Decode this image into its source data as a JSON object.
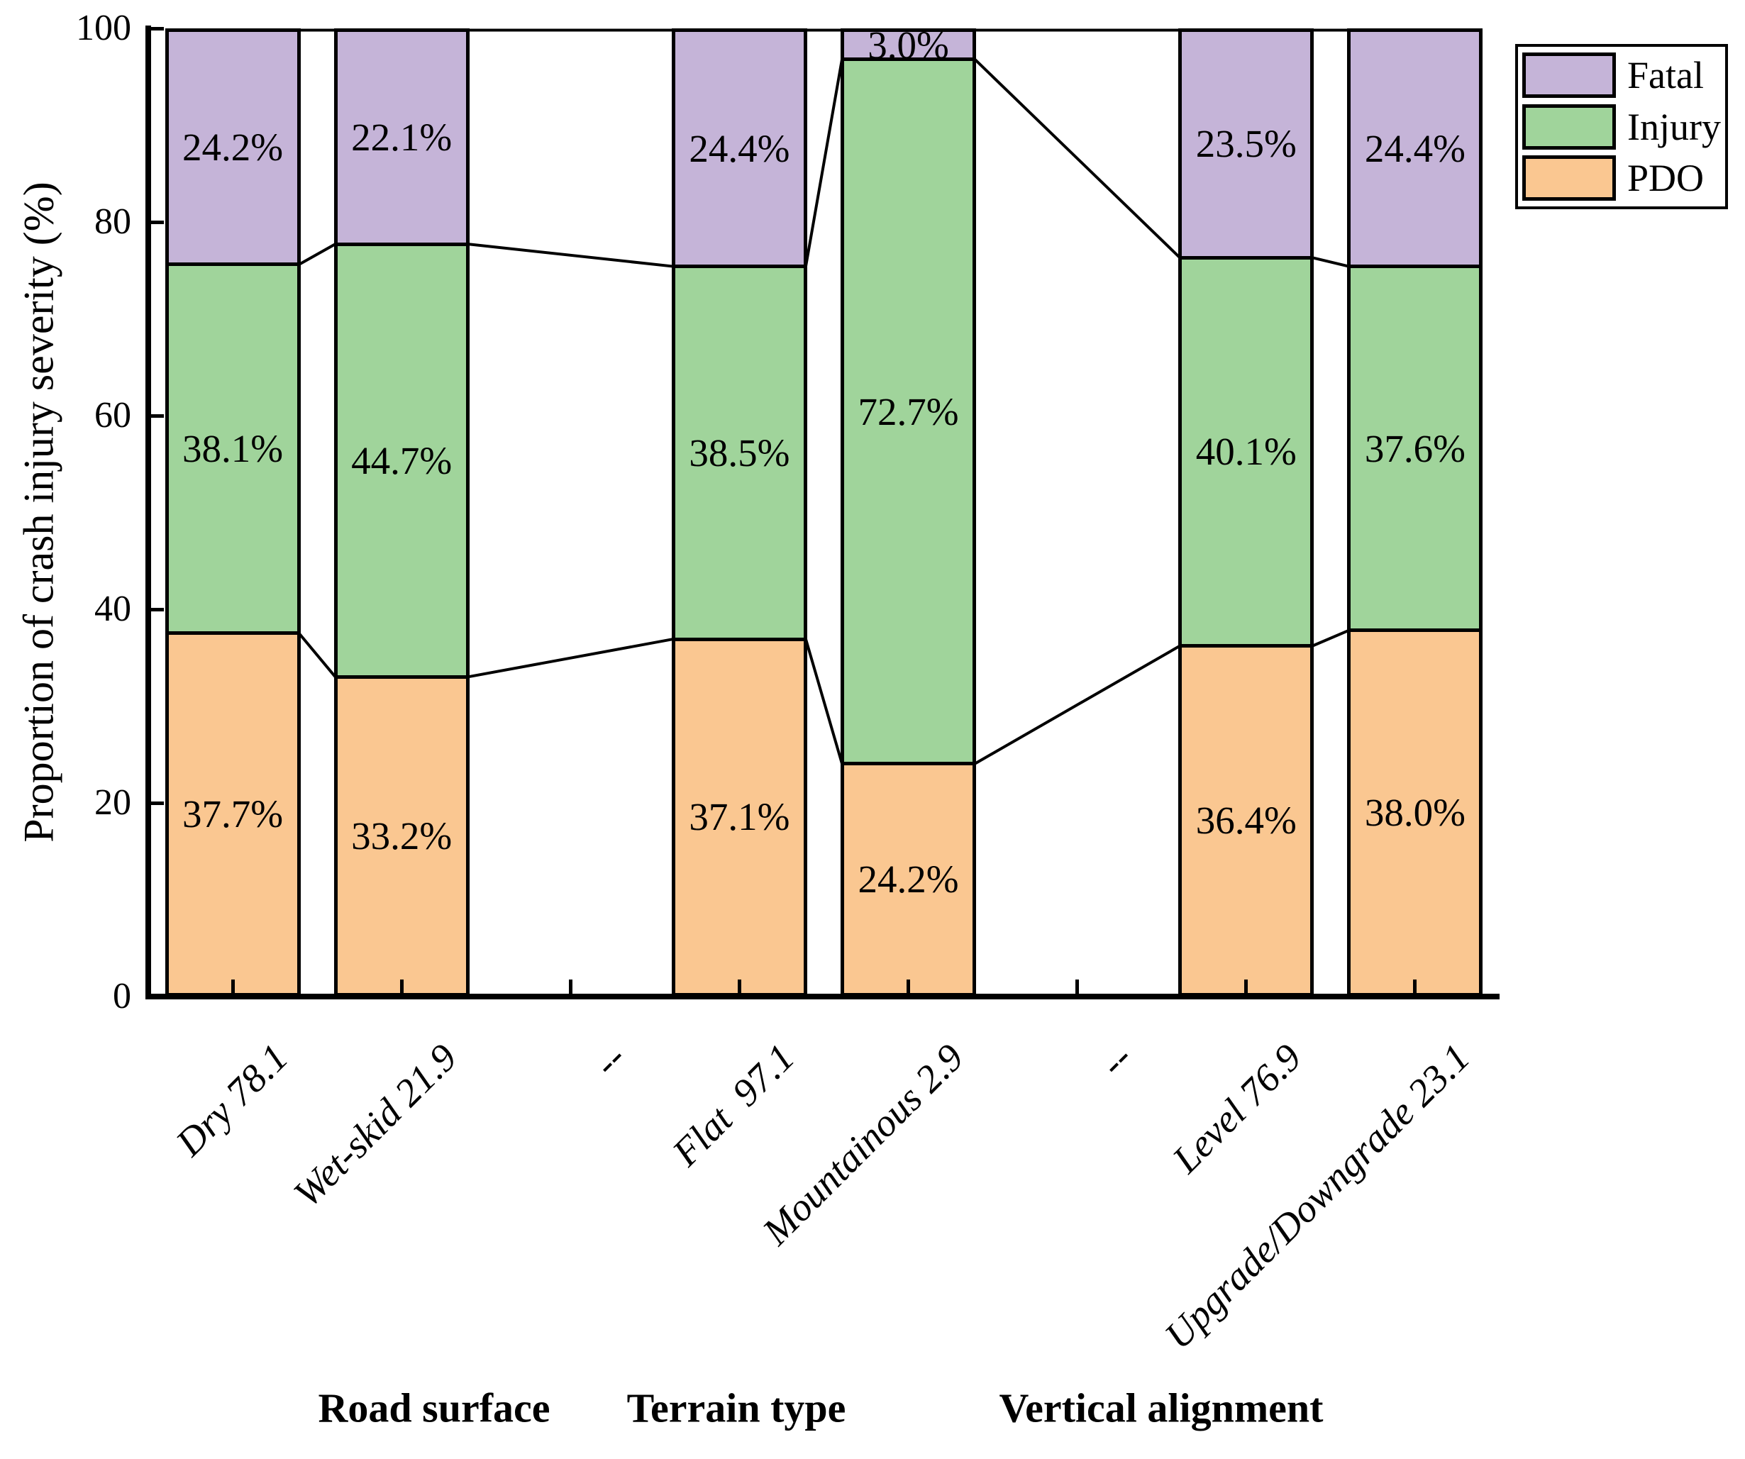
{
  "figure": {
    "background": "#FFFFFF"
  },
  "y_axis": {
    "title": "Proportion of crash injury severity (%)",
    "tick_labels": [
      "0",
      "20",
      "40",
      "60",
      "80",
      "100"
    ],
    "tick_values": [
      0,
      20,
      40,
      60,
      80,
      100
    ],
    "range": [
      0,
      100
    ]
  },
  "x_axis": {
    "tick_labels": [
      "Dry 78.1",
      "Wet-skid 21.9",
      "--",
      "Flat  97.1",
      "Mountainous 2.9",
      "--",
      "Level 76.9",
      "Upgrade/Downgrade 23.1"
    ],
    "group_labels": [
      "Road surface",
      "Terrain type",
      "Vertical alignment"
    ]
  },
  "legend": {
    "position": "top-right",
    "entries": [
      {
        "label": "Fatal",
        "color": "#C5B4D8"
      },
      {
        "label": "Injury",
        "color": "#A0D49B"
      },
      {
        "label": "PDO",
        "color": "#FAC791"
      }
    ]
  },
  "chart_data": {
    "type": "bar",
    "stacked": true,
    "units": "percent",
    "title": "",
    "xlabel": "",
    "ylabel": "Proportion of crash injury severity (%)",
    "ylim": [
      0,
      100
    ],
    "grid": false,
    "legend_position": "top-right",
    "bar_outline_color": "#000000",
    "connector_lines": true,
    "categories": [
      "Dry 78.1",
      "Wet-skid 21.9",
      "--",
      "Flat  97.1",
      "Mountainous 2.9",
      "--",
      "Level 76.9",
      "Upgrade/Downgrade 23.1"
    ],
    "groups": [
      {
        "label": "Road surface",
        "categories": [
          "Dry 78.1",
          "Wet-skid 21.9"
        ]
      },
      {
        "label": "Terrain type",
        "categories": [
          "Flat  97.1",
          "Mountainous 2.9"
        ]
      },
      {
        "label": "Vertical alignment",
        "categories": [
          "Level 76.9",
          "Upgrade/Downgrade 23.1"
        ]
      }
    ],
    "series": [
      {
        "name": "PDO",
        "color": "#FAC791",
        "values": [
          37.7,
          33.2,
          null,
          37.1,
          24.2,
          null,
          36.4,
          38.0
        ],
        "labels": [
          "37.7%",
          "33.2%",
          "",
          "37.1%",
          "24.2%",
          "",
          "36.4%",
          "38.0%"
        ]
      },
      {
        "name": "Injury",
        "color": "#A0D49B",
        "values": [
          38.1,
          44.7,
          null,
          38.5,
          72.7,
          null,
          40.1,
          37.6
        ],
        "labels": [
          "38.1%",
          "44.7%",
          "",
          "38.5%",
          "72.7%",
          "",
          "40.1%",
          "37.6%"
        ]
      },
      {
        "name": "Fatal",
        "color": "#C5B4D8",
        "values": [
          24.2,
          22.1,
          null,
          24.4,
          3.0,
          null,
          23.5,
          24.4
        ],
        "labels": [
          "24.2%",
          "22.1%",
          "",
          "24.4%",
          "3.0%",
          "",
          "23.5%",
          "24.4%"
        ]
      }
    ]
  }
}
